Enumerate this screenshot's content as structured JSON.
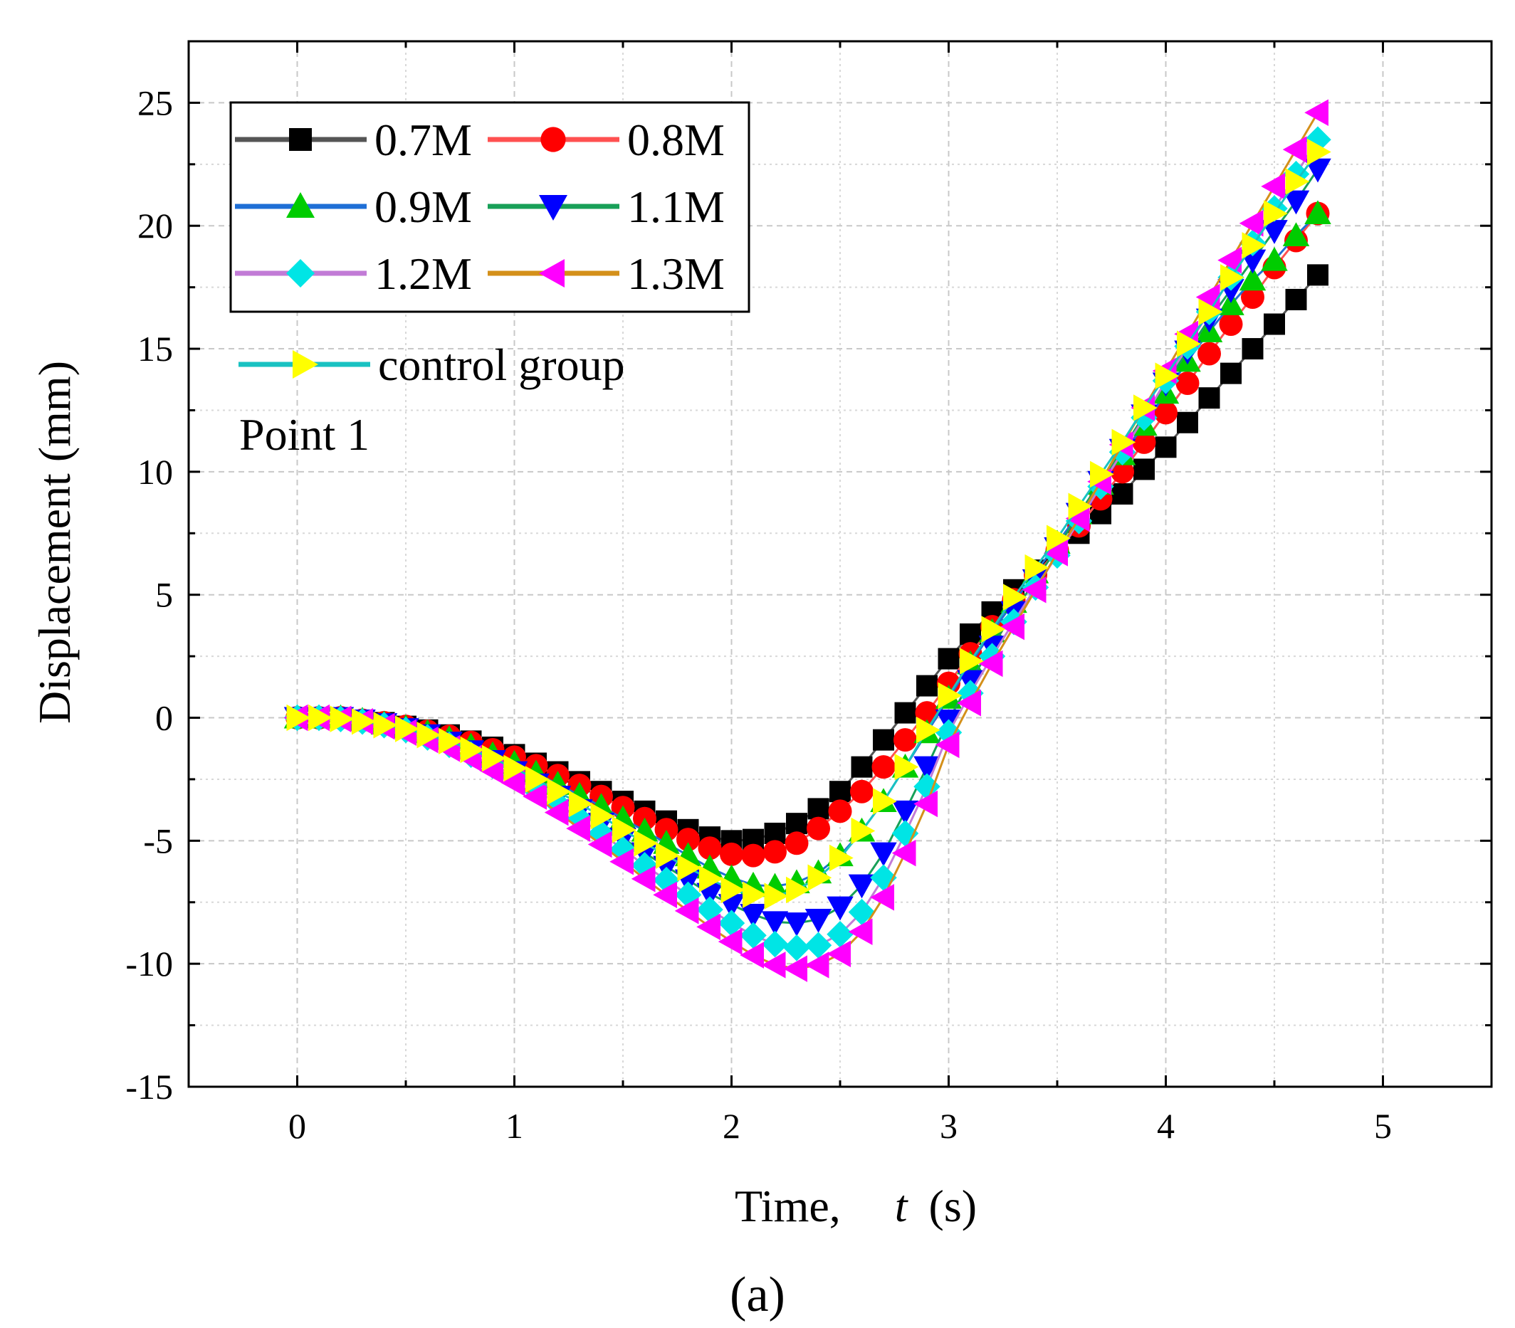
{
  "figure": {
    "caption": "(a)"
  },
  "chart_data": {
    "type": "scatter",
    "xlabel_prefix": "Time,",
    "xlabel_var": "t",
    "xlabel_unit": "(s)",
    "ylabel": "Displacement (mm)",
    "xlim": [
      -0.5,
      5.5
    ],
    "ylim": [
      -15,
      27.5
    ],
    "xticks": [
      0,
      1,
      2,
      3,
      4,
      5
    ],
    "yticks": [
      -15,
      -10,
      -5,
      0,
      5,
      10,
      15,
      20,
      25
    ],
    "grid": true,
    "legend_position": "top-left",
    "annotation": "Point 1",
    "x": [
      0,
      0.1,
      0.2,
      0.3,
      0.4,
      0.5,
      0.6,
      0.7,
      0.8,
      0.9,
      1.0,
      1.1,
      1.2,
      1.3,
      1.4,
      1.5,
      1.6,
      1.7,
      1.8,
      1.9,
      2.0,
      2.1,
      2.2,
      2.3,
      2.4,
      2.5,
      2.6,
      2.7,
      2.8,
      2.9,
      3.0,
      3.1,
      3.2,
      3.3,
      3.4,
      3.5,
      3.6,
      3.7,
      3.8,
      3.9,
      4.0,
      4.1,
      4.2,
      4.3,
      4.4,
      4.5,
      4.6,
      4.7
    ],
    "series": [
      {
        "name": "0.7M",
        "line_color": "#555555",
        "marker_color": "#000000",
        "marker": "square",
        "values": [
          0,
          0,
          0,
          -0.1,
          -0.2,
          -0.35,
          -0.5,
          -0.7,
          -0.95,
          -1.2,
          -1.5,
          -1.85,
          -2.2,
          -2.6,
          -3.0,
          -3.4,
          -3.8,
          -4.2,
          -4.55,
          -4.85,
          -5.0,
          -4.95,
          -4.7,
          -4.3,
          -3.7,
          -3.0,
          -2.0,
          -0.9,
          0.2,
          1.3,
          2.4,
          3.4,
          4.3,
          5.2,
          6.0,
          6.8,
          7.5,
          8.3,
          9.1,
          10.1,
          11.0,
          12.0,
          13.0,
          14.0,
          15.0,
          16.0,
          17.0,
          18.0
        ]
      },
      {
        "name": "0.8M",
        "line_color": "#ff5050",
        "marker_color": "#ff0000",
        "marker": "circle",
        "values": [
          0,
          0,
          0,
          -0.1,
          -0.2,
          -0.35,
          -0.55,
          -0.75,
          -1.0,
          -1.3,
          -1.6,
          -1.95,
          -2.35,
          -2.75,
          -3.2,
          -3.65,
          -4.1,
          -4.55,
          -4.95,
          -5.3,
          -5.55,
          -5.6,
          -5.45,
          -5.1,
          -4.5,
          -3.8,
          -3.0,
          -2.0,
          -0.9,
          0.2,
          1.4,
          2.6,
          3.7,
          4.8,
          5.8,
          6.8,
          7.8,
          8.9,
          10.0,
          11.2,
          12.4,
          13.6,
          14.8,
          16.0,
          17.1,
          18.3,
          19.4,
          20.5
        ]
      },
      {
        "name": "0.9M",
        "line_color": "#1f6fd6",
        "marker_color": "#00cc00",
        "marker": "triangle-up",
        "values": [
          0,
          0,
          0,
          -0.1,
          -0.25,
          -0.4,
          -0.6,
          -0.85,
          -1.15,
          -1.5,
          -1.85,
          -2.25,
          -2.7,
          -3.15,
          -3.6,
          -4.1,
          -4.6,
          -5.1,
          -5.6,
          -6.1,
          -6.5,
          -6.8,
          -6.85,
          -6.7,
          -6.3,
          -5.6,
          -4.6,
          -3.4,
          -2.0,
          -0.6,
          0.8,
          2.2,
          3.5,
          4.7,
          5.9,
          7.1,
          8.3,
          9.5,
          10.7,
          11.9,
          13.2,
          14.5,
          15.7,
          16.8,
          17.8,
          18.6,
          19.6,
          20.5
        ]
      },
      {
        "name": "1.1M",
        "line_color": "#18a058",
        "marker_color": "#0000ff",
        "marker": "triangle-down",
        "values": [
          0,
          0,
          0,
          -0.1,
          -0.25,
          -0.45,
          -0.7,
          -1.0,
          -1.35,
          -1.75,
          -2.2,
          -2.7,
          -3.2,
          -3.75,
          -4.3,
          -4.9,
          -5.5,
          -6.05,
          -6.6,
          -7.15,
          -7.6,
          -8.0,
          -8.3,
          -8.35,
          -8.2,
          -7.7,
          -6.8,
          -5.5,
          -3.8,
          -2.0,
          -0.1,
          1.5,
          2.9,
          4.3,
          5.6,
          6.9,
          8.3,
          9.6,
          10.9,
          12.3,
          13.6,
          14.9,
          16.2,
          17.4,
          18.6,
          19.8,
          21.0,
          22.3
        ]
      },
      {
        "name": "1.2M",
        "line_color": "#c27bd6",
        "marker_color": "#00e5e5",
        "marker": "diamond",
        "values": [
          0,
          0,
          -0.05,
          -0.15,
          -0.3,
          -0.5,
          -0.8,
          -1.1,
          -1.5,
          -1.95,
          -2.4,
          -2.95,
          -3.5,
          -4.1,
          -4.7,
          -5.35,
          -6.0,
          -6.6,
          -7.2,
          -7.8,
          -8.35,
          -8.85,
          -9.2,
          -9.35,
          -9.25,
          -8.8,
          -7.9,
          -6.5,
          -4.7,
          -2.8,
          -0.6,
          1.0,
          2.5,
          3.9,
          5.3,
          6.6,
          8.0,
          9.4,
          10.8,
          12.2,
          13.7,
          15.1,
          16.5,
          17.9,
          19.3,
          20.7,
          22.1,
          23.5
        ]
      },
      {
        "name": "1.3M",
        "line_color": "#d4901a",
        "marker_color": "#ff00ff",
        "marker": "triangle-left",
        "values": [
          0,
          0,
          -0.05,
          -0.15,
          -0.35,
          -0.6,
          -0.9,
          -1.25,
          -1.65,
          -2.15,
          -2.65,
          -3.2,
          -3.85,
          -4.5,
          -5.15,
          -5.85,
          -6.55,
          -7.2,
          -7.85,
          -8.5,
          -9.1,
          -9.65,
          -10.05,
          -10.2,
          -10.05,
          -9.6,
          -8.7,
          -7.3,
          -5.5,
          -3.5,
          -1.1,
          0.6,
          2.2,
          3.7,
          5.2,
          6.7,
          8.1,
          9.6,
          11.1,
          12.6,
          14.1,
          15.6,
          17.1,
          18.6,
          20.1,
          21.6,
          23.1,
          24.6
        ]
      },
      {
        "name": "control group",
        "line_color": "#19c2c2",
        "marker_color": "#ffff00",
        "marker": "triangle-right",
        "values": [
          0,
          0,
          -0.05,
          -0.15,
          -0.3,
          -0.45,
          -0.7,
          -0.95,
          -1.3,
          -1.65,
          -2.05,
          -2.5,
          -3.0,
          -3.5,
          -4.0,
          -4.55,
          -5.1,
          -5.6,
          -6.1,
          -6.55,
          -7.0,
          -7.2,
          -7.25,
          -7.0,
          -6.5,
          -5.7,
          -4.6,
          -3.4,
          -2.0,
          -0.5,
          0.9,
          2.3,
          3.6,
          4.9,
          6.1,
          7.3,
          8.6,
          9.9,
          11.2,
          12.6,
          13.9,
          15.2,
          16.5,
          17.9,
          19.2,
          20.5,
          21.8,
          23.0
        ]
      }
    ]
  }
}
